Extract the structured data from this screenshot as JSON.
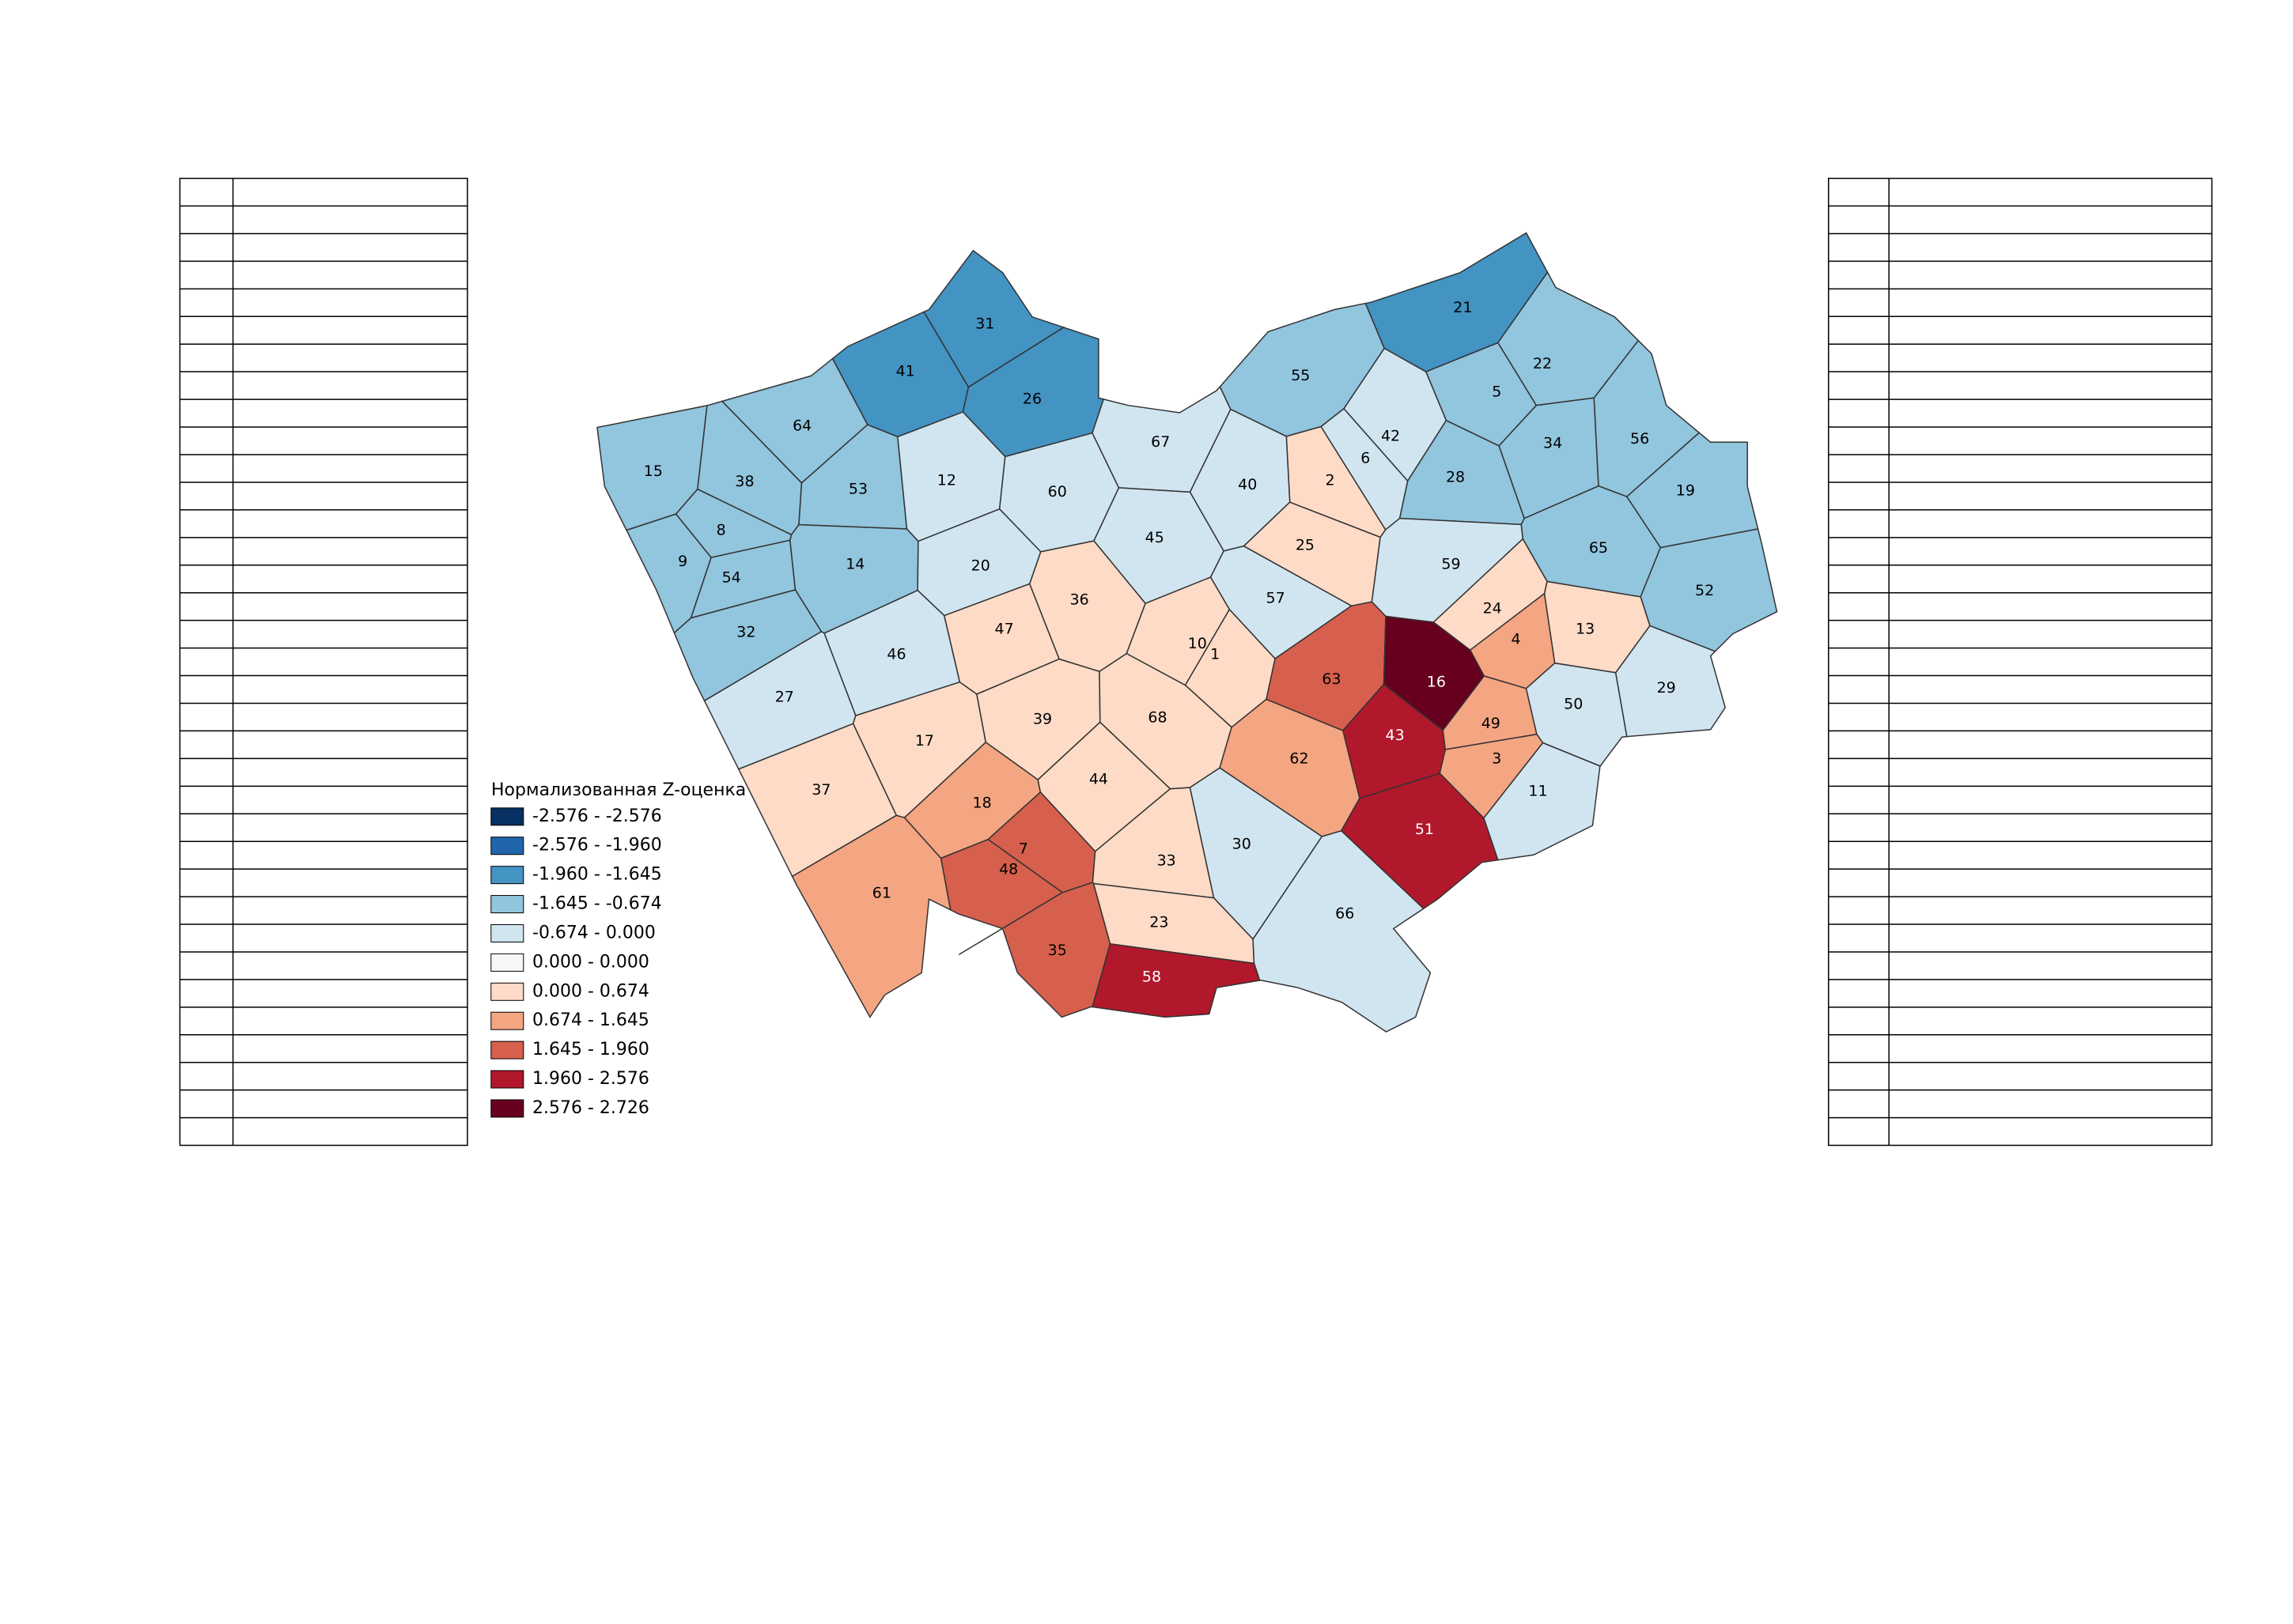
{
  "legend": {
    "title": "Нормализованная Z-оценка",
    "items": [
      {
        "label": "-2.576 - -2.576",
        "color": "#053061"
      },
      {
        "label": "-2.576 - -1.960",
        "color": "#2166ac"
      },
      {
        "label": "-1.960 - -1.645",
        "color": "#4393c3"
      },
      {
        "label": "-1.645 - -0.674",
        "color": "#92c5de"
      },
      {
        "label": "-0.674 - 0.000",
        "color": "#d1e5f0"
      },
      {
        "label": "0.000 - 0.000",
        "color": "#f7f7f7"
      },
      {
        "label": "0.000 - 0.674",
        "color": "#fddbc7"
      },
      {
        "label": "0.674 - 1.645",
        "color": "#f4a582"
      },
      {
        "label": "1.645 - 1.960",
        "color": "#d6604d"
      },
      {
        "label": "1.960 - 2.576",
        "color": "#b2182b"
      },
      {
        "label": "2.576 - 2.726",
        "color": "#67001f"
      }
    ]
  },
  "regions": [
    {
      "label": "31",
      "color": "#4393c3"
    },
    {
      "label": "41",
      "color": "#4393c3"
    },
    {
      "label": "26",
      "color": "#4393c3"
    },
    {
      "label": "64",
      "color": "#92c5de"
    },
    {
      "label": "15",
      "color": "#92c5de"
    },
    {
      "label": "38",
      "color": "#92c5de"
    },
    {
      "label": "53",
      "color": "#92c5de"
    },
    {
      "label": "12",
      "color": "#d1e5f0"
    },
    {
      "label": "60",
      "color": "#d1e5f0"
    },
    {
      "label": "67",
      "color": "#d1e5f0"
    },
    {
      "label": "55",
      "color": "#92c5de"
    },
    {
      "label": "21",
      "color": "#4393c3"
    },
    {
      "label": "22",
      "color": "#92c5de"
    },
    {
      "label": "5",
      "color": "#92c5de"
    },
    {
      "label": "42",
      "color": "#d1e5f0"
    },
    {
      "label": "6",
      "color": "#d1e5f0"
    },
    {
      "label": "2",
      "color": "#fddbc7"
    },
    {
      "label": "40",
      "color": "#d1e5f0"
    },
    {
      "label": "34",
      "color": "#92c5de"
    },
    {
      "label": "56",
      "color": "#92c5de"
    },
    {
      "label": "28",
      "color": "#92c5de"
    },
    {
      "label": "19",
      "color": "#92c5de"
    },
    {
      "label": "8",
      "color": "#92c5de"
    },
    {
      "label": "9",
      "color": "#92c5de"
    },
    {
      "label": "54",
      "color": "#92c5de"
    },
    {
      "label": "14",
      "color": "#92c5de"
    },
    {
      "label": "20",
      "color": "#d1e5f0"
    },
    {
      "label": "45",
      "color": "#d1e5f0"
    },
    {
      "label": "25",
      "color": "#fddbc7"
    },
    {
      "label": "59",
      "color": "#d1e5f0"
    },
    {
      "label": "65",
      "color": "#92c5de"
    },
    {
      "label": "52",
      "color": "#92c5de"
    },
    {
      "label": "32",
      "color": "#92c5de"
    },
    {
      "label": "46",
      "color": "#d1e5f0"
    },
    {
      "label": "47",
      "color": "#fddbc7"
    },
    {
      "label": "36",
      "color": "#fddbc7"
    },
    {
      "label": "10",
      "color": "#fddbc7"
    },
    {
      "label": "1",
      "color": "#fddbc7"
    },
    {
      "label": "57",
      "color": "#d1e5f0"
    },
    {
      "label": "24",
      "color": "#fddbc7"
    },
    {
      "label": "4",
      "color": "#f4a582"
    },
    {
      "label": "13",
      "color": "#fddbc7"
    },
    {
      "label": "63",
      "color": "#d6604d"
    },
    {
      "label": "16",
      "color": "#67001f"
    },
    {
      "label": "27",
      "color": "#d1e5f0"
    },
    {
      "label": "17",
      "color": "#fddbc7"
    },
    {
      "label": "39",
      "color": "#fddbc7"
    },
    {
      "label": "68",
      "color": "#fddbc7"
    },
    {
      "label": "43",
      "color": "#b2182b"
    },
    {
      "label": "49",
      "color": "#f4a582"
    },
    {
      "label": "50",
      "color": "#d1e5f0"
    },
    {
      "label": "29",
      "color": "#d1e5f0"
    },
    {
      "label": "62",
      "color": "#f4a582"
    },
    {
      "label": "3",
      "color": "#f4a582"
    },
    {
      "label": "37",
      "color": "#fddbc7"
    },
    {
      "label": "18",
      "color": "#f4a582"
    },
    {
      "label": "44",
      "color": "#fddbc7"
    },
    {
      "label": "11",
      "color": "#d1e5f0"
    },
    {
      "label": "7",
      "color": "#d6604d"
    },
    {
      "label": "48",
      "color": "#d6604d"
    },
    {
      "label": "30",
      "color": "#d1e5f0"
    },
    {
      "label": "33",
      "color": "#fddbc7"
    },
    {
      "label": "51",
      "color": "#b2182b"
    },
    {
      "label": "61",
      "color": "#f4a582"
    },
    {
      "label": "23",
      "color": "#fddbc7"
    },
    {
      "label": "66",
      "color": "#d1e5f0"
    },
    {
      "label": "35",
      "color": "#d6604d"
    },
    {
      "label": "58",
      "color": "#b2182b"
    }
  ]
}
